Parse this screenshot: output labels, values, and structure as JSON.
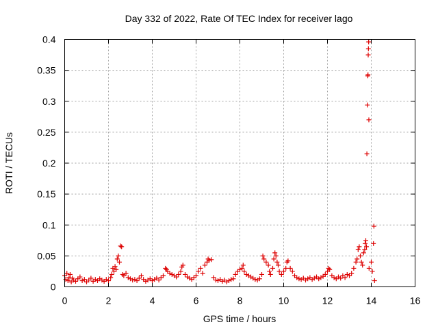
{
  "chart_data": {
    "type": "scatter",
    "title": "Day 332 of 2022, Rate Of TEC Index for receiver lago",
    "xlabel": "GPS time / hours",
    "ylabel": "ROTI / TECUs",
    "xlim": [
      0,
      16
    ],
    "ylim": [
      0,
      0.4
    ],
    "x_ticks": [
      "0",
      "2",
      "4",
      "6",
      "8",
      "10",
      "12",
      "14",
      "16"
    ],
    "y_ticks": [
      "0",
      "0.05",
      "0.1",
      "0.15",
      "0.2",
      "0.25",
      "0.3",
      "0.35",
      "0.4"
    ],
    "grid": true,
    "marker": "+",
    "color": "#dd0000",
    "points": [
      [
        0.0,
        0.018
      ],
      [
        0.05,
        0.012
      ],
      [
        0.1,
        0.022
      ],
      [
        0.15,
        0.01
      ],
      [
        0.2,
        0.015
      ],
      [
        0.25,
        0.02
      ],
      [
        0.3,
        0.008
      ],
      [
        0.35,
        0.014
      ],
      [
        0.4,
        0.011
      ],
      [
        0.5,
        0.009
      ],
      [
        0.6,
        0.013
      ],
      [
        0.7,
        0.016
      ],
      [
        0.8,
        0.01
      ],
      [
        0.9,
        0.012
      ],
      [
        1.0,
        0.008
      ],
      [
        1.1,
        0.011
      ],
      [
        1.2,
        0.014
      ],
      [
        1.3,
        0.009
      ],
      [
        1.4,
        0.012
      ],
      [
        1.5,
        0.01
      ],
      [
        1.6,
        0.013
      ],
      [
        1.7,
        0.011
      ],
      [
        1.8,
        0.009
      ],
      [
        1.9,
        0.012
      ],
      [
        2.0,
        0.01
      ],
      [
        2.1,
        0.015
      ],
      [
        2.15,
        0.02
      ],
      [
        2.2,
        0.03
      ],
      [
        2.25,
        0.025
      ],
      [
        2.3,
        0.033
      ],
      [
        2.35,
        0.028
      ],
      [
        2.4,
        0.045
      ],
      [
        2.45,
        0.05
      ],
      [
        2.5,
        0.04
      ],
      [
        2.55,
        0.066
      ],
      [
        2.6,
        0.065
      ],
      [
        2.65,
        0.02
      ],
      [
        2.7,
        0.018
      ],
      [
        2.8,
        0.022
      ],
      [
        2.9,
        0.015
      ],
      [
        3.0,
        0.013
      ],
      [
        3.1,
        0.011
      ],
      [
        3.2,
        0.012
      ],
      [
        3.3,
        0.01
      ],
      [
        3.4,
        0.014
      ],
      [
        3.5,
        0.018
      ],
      [
        3.6,
        0.012
      ],
      [
        3.7,
        0.009
      ],
      [
        3.8,
        0.011
      ],
      [
        3.9,
        0.013
      ],
      [
        4.0,
        0.01
      ],
      [
        4.1,
        0.012
      ],
      [
        4.2,
        0.014
      ],
      [
        4.3,
        0.011
      ],
      [
        4.4,
        0.015
      ],
      [
        4.5,
        0.018
      ],
      [
        4.6,
        0.03
      ],
      [
        4.65,
        0.028
      ],
      [
        4.7,
        0.025
      ],
      [
        4.8,
        0.022
      ],
      [
        4.9,
        0.02
      ],
      [
        5.0,
        0.018
      ],
      [
        5.1,
        0.016
      ],
      [
        5.2,
        0.02
      ],
      [
        5.3,
        0.025
      ],
      [
        5.35,
        0.032
      ],
      [
        5.4,
        0.035
      ],
      [
        5.5,
        0.02
      ],
      [
        5.6,
        0.016
      ],
      [
        5.7,
        0.014
      ],
      [
        5.8,
        0.012
      ],
      [
        5.9,
        0.015
      ],
      [
        6.0,
        0.018
      ],
      [
        6.1,
        0.025
      ],
      [
        6.2,
        0.03
      ],
      [
        6.3,
        0.022
      ],
      [
        6.4,
        0.035
      ],
      [
        6.5,
        0.04
      ],
      [
        6.55,
        0.045
      ],
      [
        6.6,
        0.043
      ],
      [
        6.7,
        0.044
      ],
      [
        6.8,
        0.015
      ],
      [
        6.9,
        0.011
      ],
      [
        7.0,
        0.01
      ],
      [
        7.1,
        0.012
      ],
      [
        7.2,
        0.009
      ],
      [
        7.3,
        0.011
      ],
      [
        7.4,
        0.008
      ],
      [
        7.5,
        0.01
      ],
      [
        7.6,
        0.012
      ],
      [
        7.7,
        0.013
      ],
      [
        7.8,
        0.02
      ],
      [
        7.9,
        0.025
      ],
      [
        8.0,
        0.028
      ],
      [
        8.1,
        0.03
      ],
      [
        8.15,
        0.035
      ],
      [
        8.2,
        0.025
      ],
      [
        8.3,
        0.02
      ],
      [
        8.4,
        0.018
      ],
      [
        8.5,
        0.016
      ],
      [
        8.6,
        0.014
      ],
      [
        8.7,
        0.012
      ],
      [
        8.8,
        0.011
      ],
      [
        8.9,
        0.013
      ],
      [
        9.0,
        0.02
      ],
      [
        9.05,
        0.05
      ],
      [
        9.1,
        0.045
      ],
      [
        9.2,
        0.04
      ],
      [
        9.3,
        0.035
      ],
      [
        9.35,
        0.025
      ],
      [
        9.4,
        0.02
      ],
      [
        9.5,
        0.03
      ],
      [
        9.55,
        0.045
      ],
      [
        9.6,
        0.055
      ],
      [
        9.65,
        0.05
      ],
      [
        9.7,
        0.04
      ],
      [
        9.75,
        0.035
      ],
      [
        9.8,
        0.025
      ],
      [
        9.9,
        0.02
      ],
      [
        10.0,
        0.025
      ],
      [
        10.1,
        0.03
      ],
      [
        10.15,
        0.04
      ],
      [
        10.2,
        0.042
      ],
      [
        10.3,
        0.03
      ],
      [
        10.4,
        0.025
      ],
      [
        10.5,
        0.018
      ],
      [
        10.6,
        0.015
      ],
      [
        10.7,
        0.013
      ],
      [
        10.8,
        0.012
      ],
      [
        10.9,
        0.014
      ],
      [
        11.0,
        0.011
      ],
      [
        11.1,
        0.013
      ],
      [
        11.2,
        0.015
      ],
      [
        11.3,
        0.012
      ],
      [
        11.4,
        0.014
      ],
      [
        11.5,
        0.016
      ],
      [
        11.6,
        0.013
      ],
      [
        11.7,
        0.015
      ],
      [
        11.8,
        0.017
      ],
      [
        11.9,
        0.02
      ],
      [
        12.0,
        0.025
      ],
      [
        12.05,
        0.03
      ],
      [
        12.1,
        0.028
      ],
      [
        12.2,
        0.018
      ],
      [
        12.3,
        0.015
      ],
      [
        12.4,
        0.013
      ],
      [
        12.5,
        0.016
      ],
      [
        12.6,
        0.014
      ],
      [
        12.7,
        0.018
      ],
      [
        12.8,
        0.015
      ],
      [
        12.9,
        0.02
      ],
      [
        13.0,
        0.018
      ],
      [
        13.1,
        0.022
      ],
      [
        13.2,
        0.03
      ],
      [
        13.3,
        0.04
      ],
      [
        13.35,
        0.045
      ],
      [
        13.4,
        0.06
      ],
      [
        13.45,
        0.065
      ],
      [
        13.5,
        0.05
      ],
      [
        13.55,
        0.04
      ],
      [
        13.6,
        0.035
      ],
      [
        13.65,
        0.055
      ],
      [
        13.7,
        0.06
      ],
      [
        13.72,
        0.07
      ],
      [
        13.75,
        0.075
      ],
      [
        13.78,
        0.065
      ],
      [
        13.8,
        0.215
      ],
      [
        13.82,
        0.294
      ],
      [
        13.84,
        0.341
      ],
      [
        13.85,
        0.343
      ],
      [
        13.86,
        0.375
      ],
      [
        13.87,
        0.385
      ],
      [
        13.88,
        0.396
      ],
      [
        13.89,
        0.27
      ],
      [
        13.9,
        0.03
      ],
      [
        14.0,
        0.04
      ],
      [
        14.05,
        0.025
      ],
      [
        14.1,
        0.07
      ],
      [
        14.12,
        0.098
      ],
      [
        14.15,
        0.01
      ]
    ]
  }
}
